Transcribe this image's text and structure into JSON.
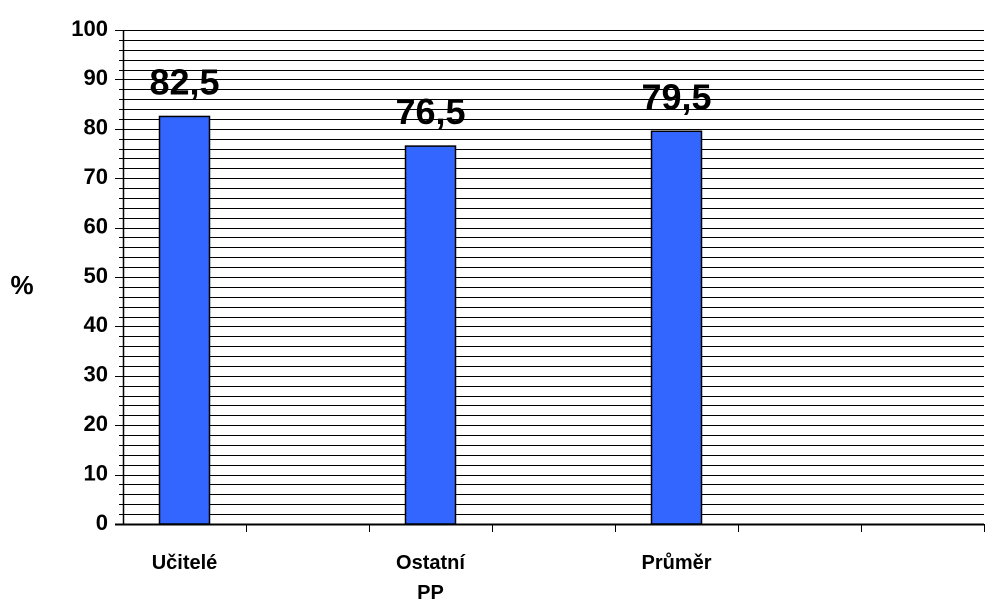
{
  "chart_data": {
    "type": "bar",
    "categories": [
      "Učitelé",
      "Ostatní PP",
      "Průměr"
    ],
    "category_label_lines": [
      [
        "Učitelé"
      ],
      [
        "Ostatní",
        "PP"
      ],
      [
        "Průměr"
      ]
    ],
    "values": [
      82.5,
      76.5,
      79.5
    ],
    "data_labels": [
      "82,5",
      "76,5",
      "79,5"
    ],
    "title": "",
    "xlabel": "",
    "ylabel": "%",
    "ylim": [
      0,
      100
    ],
    "yticks": [
      0,
      10,
      20,
      30,
      40,
      50,
      60,
      70,
      80,
      90,
      100
    ],
    "minor_grid_step": 2,
    "grid": true,
    "legend": "none",
    "bar_color": "#3366ff",
    "grid_color": "#000000"
  }
}
